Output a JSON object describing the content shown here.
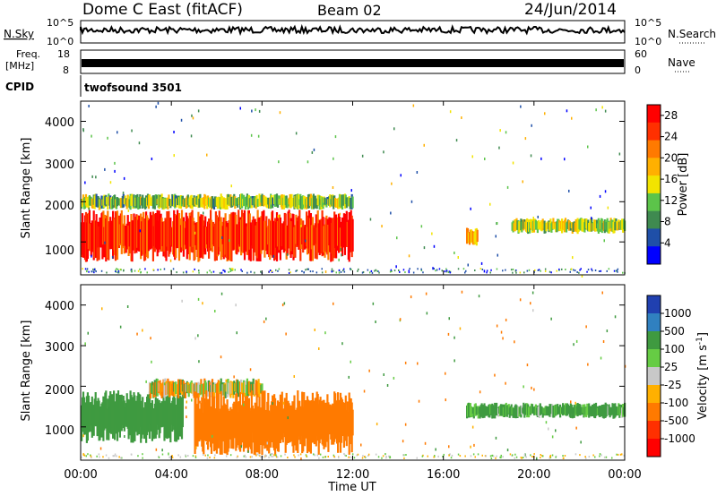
{
  "header": {
    "title": "Dome C East (fitACF)",
    "beam": "Beam 02",
    "date": "24/Jun/2014"
  },
  "status_panels": {
    "nsky_label": "N.Sky",
    "nsky_ticks": [
      "10^5",
      "10^0"
    ],
    "nsearch_label": "N.Search",
    "nsearch_ticks": [
      "10^5",
      "10^0"
    ],
    "freq_label": "Freq.",
    "freq_unit": "[MHz]",
    "freq_ticks": [
      "18",
      "8"
    ],
    "nave_label": "Nave",
    "nave_ticks": [
      "60",
      "0"
    ],
    "cpid_label": "CPID",
    "cpid_value": "twofsound 3501"
  },
  "chart_data": [
    {
      "type": "heatmap",
      "name": "power",
      "xlabel": "Time UT",
      "ylabel": "Slant Range [km]",
      "x_range_hours": [
        0,
        24
      ],
      "ylim": [
        180,
        4500
      ],
      "yticks": [
        "1000",
        "2000",
        "3000",
        "4000"
      ],
      "colorbar": {
        "label": "Power [dB]",
        "ticks": [
          "4",
          "8",
          "12",
          "16",
          "20",
          "24",
          "28"
        ],
        "range": [
          0,
          30
        ],
        "colors": [
          "#0000ff",
          "#1f4fa8",
          "#3f8a50",
          "#5cc44a",
          "#f2e400",
          "#ffb000",
          "#ff7a00",
          "#ff3000",
          "#ff0000"
        ]
      },
      "echo_regions": [
        {
          "t0": 0.0,
          "t1": 12.0,
          "r0": 500,
          "r1": 1800,
          "typical_db": 26
        },
        {
          "t0": 0.0,
          "t1": 12.0,
          "r0": 1800,
          "r1": 2200,
          "typical_db": 12
        },
        {
          "t0": 17.0,
          "t1": 17.5,
          "r0": 900,
          "r1": 1400,
          "typical_db": 20
        },
        {
          "t0": 19.0,
          "t1": 24.0,
          "r0": 1200,
          "r1": 1600,
          "typical_db": 14
        }
      ]
    },
    {
      "type": "heatmap",
      "name": "velocity",
      "xlabel": "Time UT",
      "ylabel": "Slant Range [km]",
      "x_range_hours": [
        0,
        24
      ],
      "ylim": [
        180,
        4500
      ],
      "yticks": [
        "1000",
        "2000",
        "3000",
        "4000"
      ],
      "colorbar": {
        "label": "Velocity [m s^-1]",
        "ticks": [
          "1000",
          "500",
          "100",
          "25",
          "-25",
          "-100",
          "-500",
          "-1000"
        ],
        "colors": [
          "#2040b0",
          "#3080c0",
          "#3f9a40",
          "#66cc44",
          "#c8c8c8",
          "#ffb000",
          "#ff7a00",
          "#ff3000",
          "#ff0000"
        ]
      },
      "echo_regions": [
        {
          "t0": 0.0,
          "t1": 4.5,
          "r0": 600,
          "r1": 1900,
          "typical_ms": 300
        },
        {
          "t0": 3.0,
          "t1": 8.0,
          "r0": 1700,
          "r1": 2200,
          "typical_ms": 0
        },
        {
          "t0": 5.0,
          "t1": 12.0,
          "r0": 300,
          "r1": 1900,
          "typical_ms": -300
        },
        {
          "t0": 17.0,
          "t1": 24.0,
          "r0": 1200,
          "r1": 1600,
          "typical_ms": 200
        }
      ]
    }
  ],
  "x_axis": {
    "ticks": [
      "00:00",
      "04:00",
      "08:00",
      "12:00",
      "16:00",
      "20:00",
      "00:00"
    ],
    "label": "Time UT"
  }
}
